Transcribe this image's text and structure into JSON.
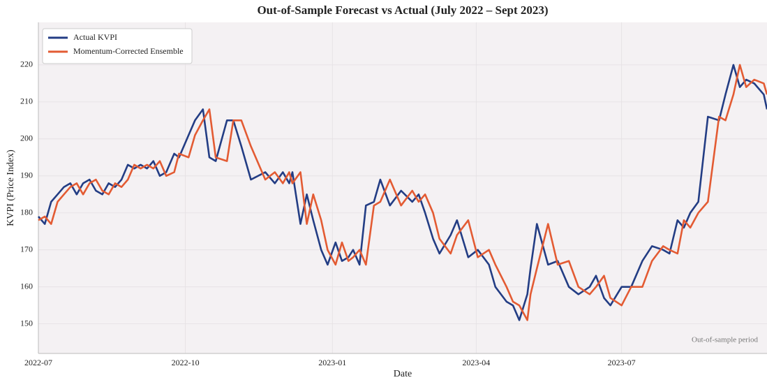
{
  "chart_data": {
    "type": "line",
    "title": "Out-of-Sample Forecast vs Actual (July 2022 – Sept 2023)",
    "xlabel": "Date",
    "ylabel": "KVPI (Price Index)",
    "annotation": "Out-of-sample period",
    "x": [
      0,
      4,
      8,
      12,
      16,
      20,
      24,
      28,
      32,
      36,
      40,
      44,
      48,
      52,
      56,
      60,
      64,
      68,
      72,
      76,
      80,
      85,
      88,
      94,
      98,
      103,
      107,
      111,
      118,
      122,
      127,
      133,
      142,
      148,
      153,
      157,
      159,
      164,
      168,
      172,
      177,
      181,
      186,
      190,
      194,
      197,
      201,
      205,
      210,
      214,
      220,
      227,
      234,
      238,
      242,
      247,
      251,
      258,
      262,
      269,
      275,
      282,
      286,
      293,
      297,
      301,
      306,
      308,
      312,
      319,
      325,
      332,
      338,
      345,
      349,
      354,
      358,
      365,
      371,
      378,
      384,
      391,
      395,
      400,
      404,
      408,
      413,
      419,
      426,
      430,
      435,
      439,
      443,
      448,
      454,
      456
    ],
    "series": [
      {
        "name": "Actual KVPI",
        "color": "#233d84",
        "values": [
          179,
          177,
          183,
          185,
          187,
          188,
          185,
          188,
          189,
          186,
          185,
          188,
          187,
          189,
          193,
          192,
          193,
          192,
          194,
          190,
          191,
          196,
          195,
          201,
          205,
          208,
          195,
          194,
          205,
          205,
          198,
          189,
          191,
          188,
          191,
          188,
          191,
          177,
          185,
          178,
          170,
          166,
          172,
          167,
          168,
          170,
          166,
          182,
          183,
          189,
          182,
          186,
          183,
          185,
          180,
          173,
          169,
          174,
          178,
          168,
          170,
          166,
          160,
          156,
          155,
          151,
          158,
          165,
          177,
          166,
          167,
          160,
          158,
          160,
          163,
          157,
          155,
          160,
          160,
          167,
          171,
          170,
          169,
          178,
          176,
          180,
          183,
          206,
          205,
          212,
          220,
          214,
          216,
          215,
          212,
          208
        ]
      },
      {
        "name": "Momentum-Corrected Ensemble",
        "color": "#e35b33",
        "values": [
          178,
          179,
          177,
          183,
          185,
          187,
          188,
          185,
          188,
          189,
          186,
          185,
          188,
          187,
          189,
          193,
          192,
          193,
          192,
          194,
          190,
          191,
          196,
          195,
          201,
          205,
          208,
          195,
          194,
          205,
          205,
          198,
          189,
          191,
          188,
          191,
          188,
          191,
          177,
          185,
          178,
          170,
          166,
          172,
          167,
          168,
          170,
          166,
          182,
          183,
          189,
          182,
          186,
          183,
          185,
          180,
          173,
          169,
          174,
          178,
          168,
          170,
          166,
          160,
          156,
          155,
          151,
          158,
          165,
          177,
          166,
          167,
          160,
          158,
          160,
          163,
          157,
          155,
          160,
          160,
          167,
          171,
          170,
          169,
          178,
          176,
          180,
          183,
          206,
          205,
          212,
          220,
          214,
          216,
          215,
          212
        ]
      }
    ],
    "xlim": [
      0,
      456
    ],
    "xticks": [
      {
        "value": 0,
        "label": "2022-07"
      },
      {
        "value": 92,
        "label": "2022-10"
      },
      {
        "value": 184,
        "label": "2023-01"
      },
      {
        "value": 274,
        "label": "2023-04"
      },
      {
        "value": 365,
        "label": "2023-07"
      }
    ],
    "ylim": [
      142,
      231.5
    ],
    "yticks": [
      150,
      160,
      170,
      180,
      190,
      200,
      210,
      220
    ],
    "grid": true,
    "legend": "upper left"
  }
}
